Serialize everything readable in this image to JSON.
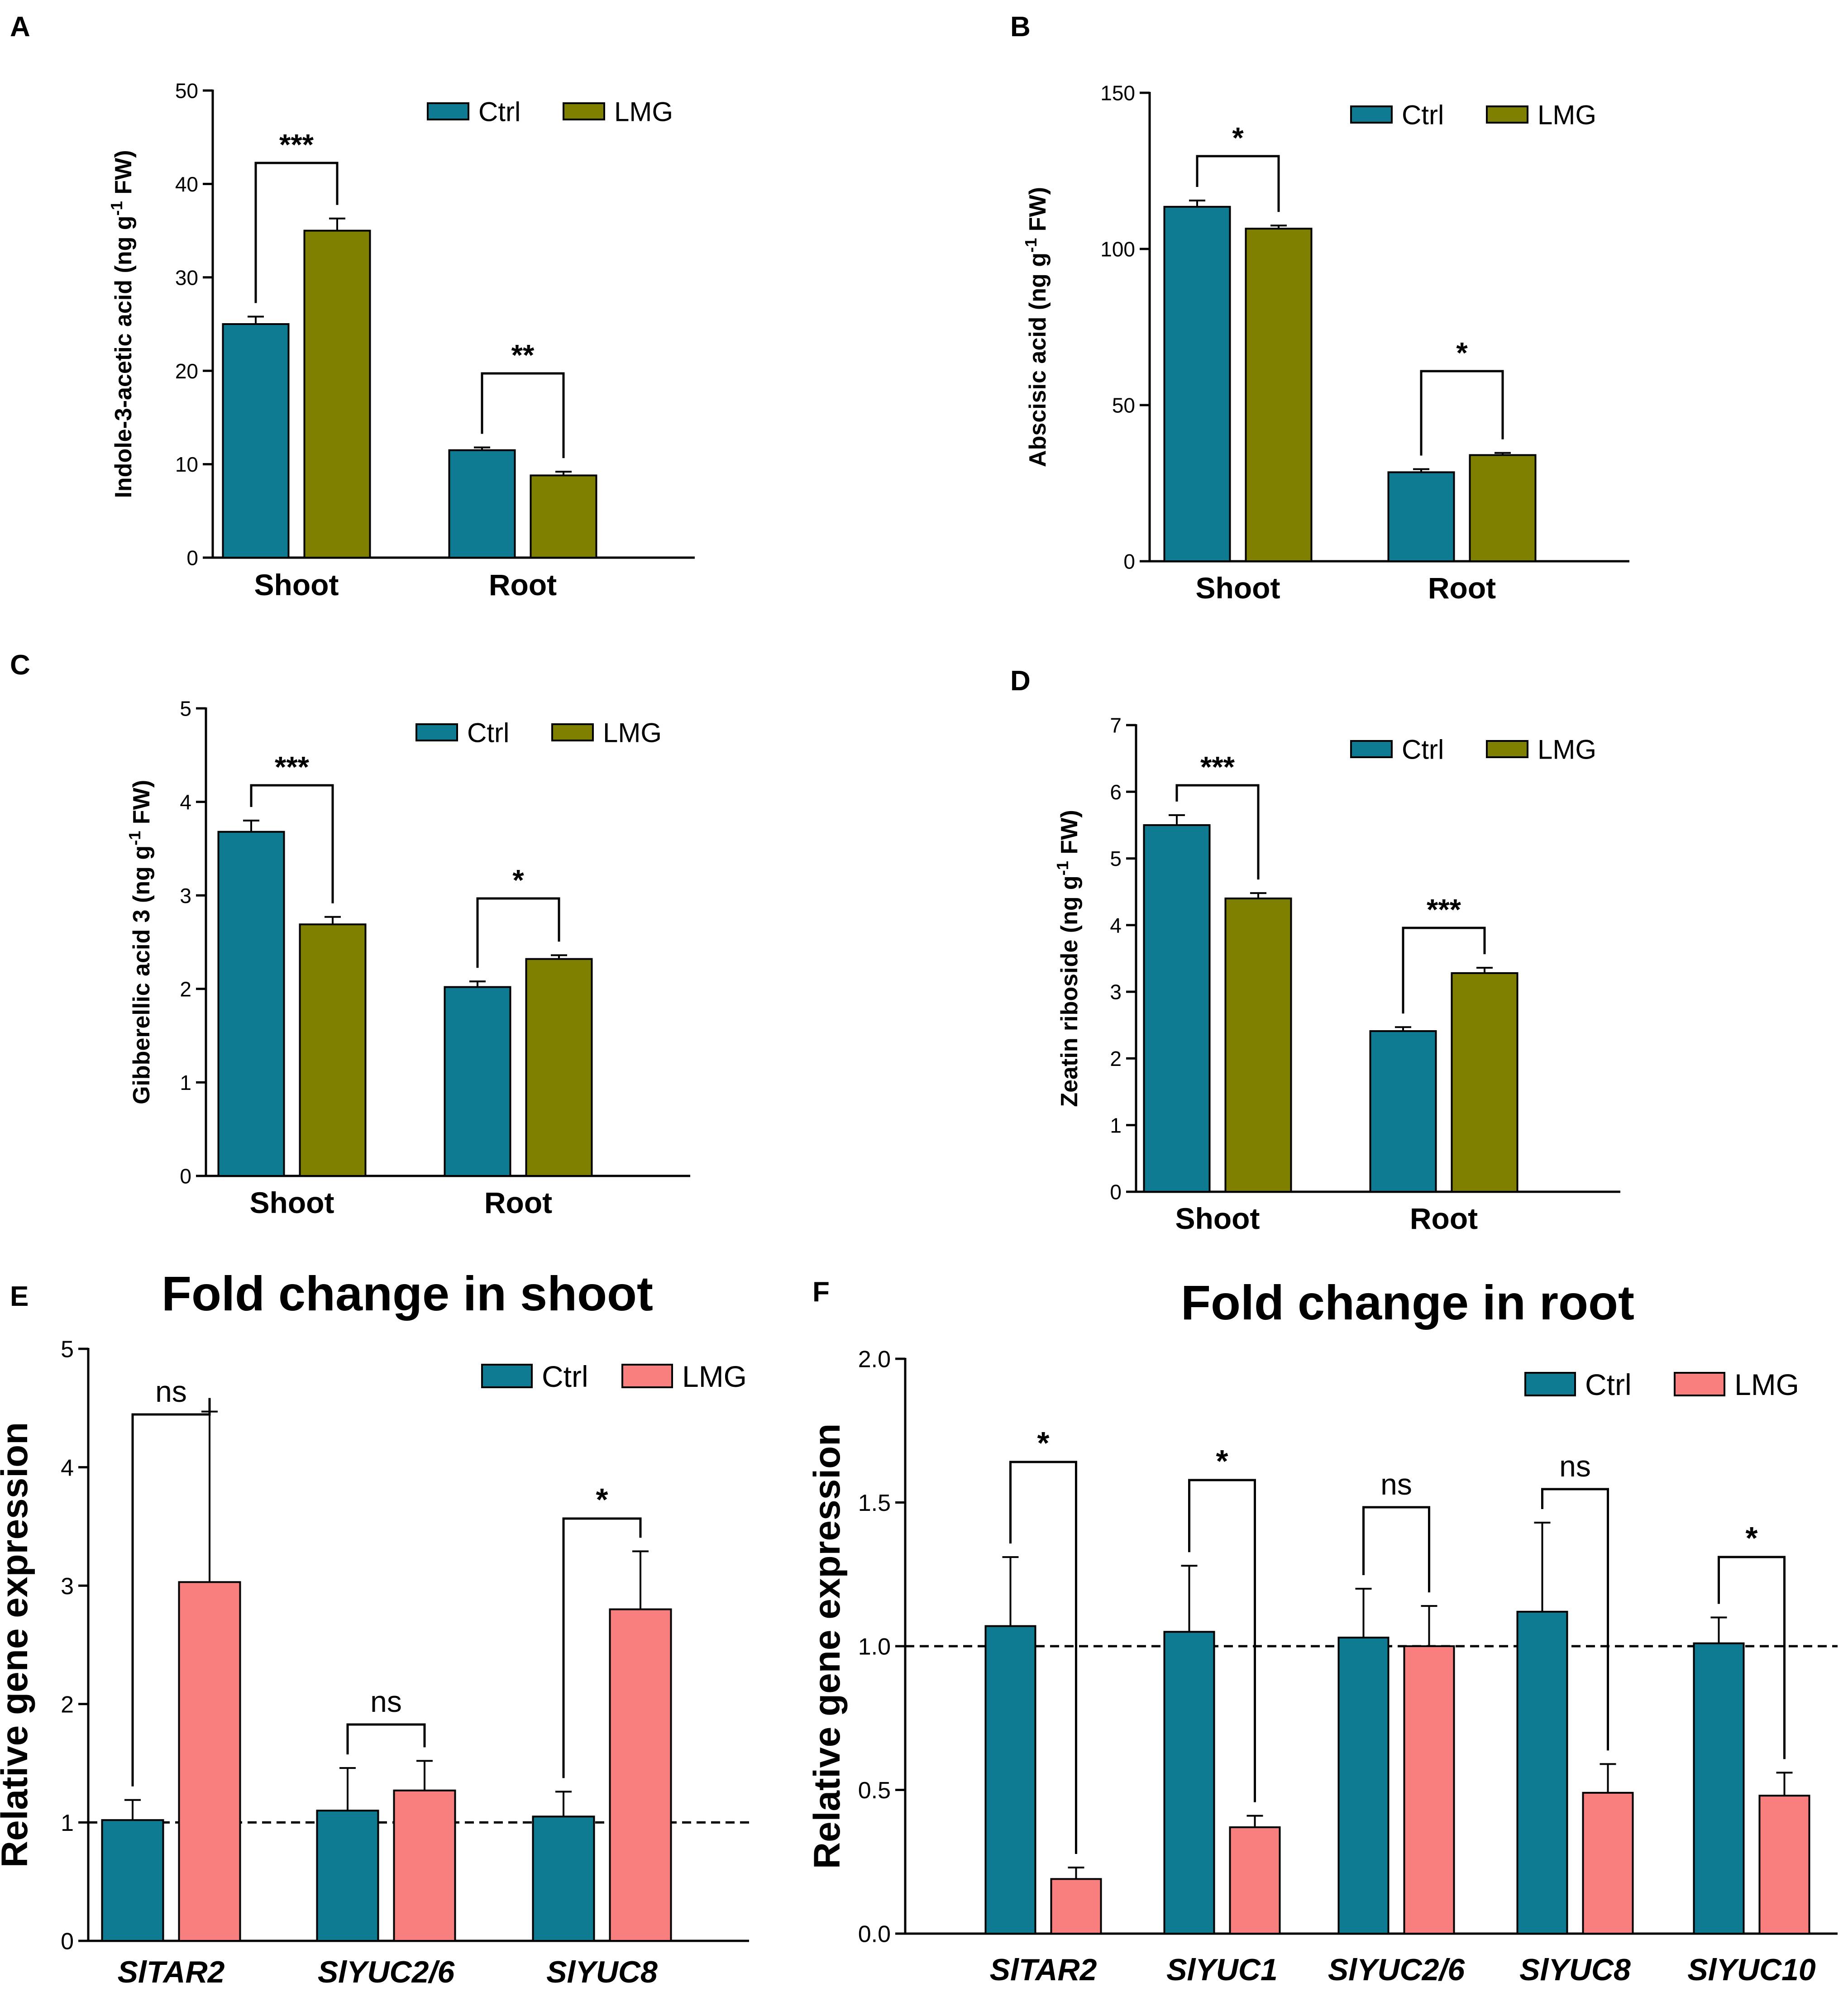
{
  "figure": {
    "colors": {
      "ctrl": "#0e7b93",
      "lmg_olive": "#808000",
      "lmg_pink": "#f97f7f",
      "axis": "#000000"
    },
    "charts": [
      {
        "panel": "A",
        "chart_data": {
          "type": "bar",
          "title": "",
          "ylabel": "Indole-3-acetic acid (ng g-1 FW)",
          "ylabel_main": "Indole-3-acetic acid (ng g",
          "ylabel_sup": "-1",
          "ylabel_end": " FW)",
          "ylim": [
            0,
            50
          ],
          "yticks": [
            "0",
            "10",
            "20",
            "30",
            "40",
            "50"
          ],
          "italic_categories": false,
          "categories": [
            "Shoot",
            "Root"
          ],
          "series": [
            {
              "name": "Ctrl",
              "color": "#0e7b93",
              "values": [
                25.0,
                11.5
              ],
              "errors": [
                0.8,
                0.3
              ]
            },
            {
              "name": "LMG",
              "color": "#808000",
              "values": [
                35.0,
                8.8
              ],
              "errors": [
                1.3,
                0.4
              ]
            }
          ],
          "significance": [
            "***",
            "**"
          ]
        }
      },
      {
        "panel": "B",
        "chart_data": {
          "type": "bar",
          "title": "",
          "ylabel": "Abscisic acid (ng g-1 FW)",
          "ylabel_main": "Abscisic acid (ng g",
          "ylabel_sup": "-1",
          "ylabel_end": " FW)",
          "ylim": [
            0,
            150
          ],
          "yticks": [
            "0",
            "50",
            "100",
            "150"
          ],
          "italic_categories": false,
          "categories": [
            "Shoot",
            "Root"
          ],
          "series": [
            {
              "name": "Ctrl",
              "color": "#0e7b93",
              "values": [
                113.5,
                28.5
              ],
              "errors": [
                2.0,
                1.0
              ]
            },
            {
              "name": "LMG",
              "color": "#808000",
              "values": [
                106.5,
                34.0
              ],
              "errors": [
                1.0,
                0.7
              ]
            }
          ],
          "significance": [
            "*",
            "*"
          ]
        }
      },
      {
        "panel": "C",
        "chart_data": {
          "type": "bar",
          "title": "",
          "ylabel": "Gibberellic acid 3 (ng g-1 FW)",
          "ylabel_main": "Gibberellic acid 3 (ng g",
          "ylabel_sup": "-1",
          "ylabel_end": " FW)",
          "ylim": [
            0,
            5
          ],
          "yticks": [
            "0",
            "1",
            "2",
            "3",
            "4",
            "5"
          ],
          "italic_categories": false,
          "categories": [
            "Shoot",
            "Root"
          ],
          "series": [
            {
              "name": "Ctrl",
              "color": "#0e7b93",
              "values": [
                3.68,
                2.02
              ],
              "errors": [
                0.12,
                0.06
              ]
            },
            {
              "name": "LMG",
              "color": "#808000",
              "values": [
                2.69,
                2.32
              ],
              "errors": [
                0.08,
                0.04
              ]
            }
          ],
          "significance": [
            "***",
            "*"
          ]
        }
      },
      {
        "panel": "D",
        "chart_data": {
          "type": "bar",
          "title": "",
          "ylabel": "Zeatin riboside (ng g-1 FW)",
          "ylabel_main": "Zeatin riboside (ng g",
          "ylabel_sup": "-1",
          "ylabel_end": " FW)",
          "ylim": [
            0,
            7
          ],
          "yticks": [
            "0",
            "1",
            "2",
            "3",
            "4",
            "5",
            "6",
            "7"
          ],
          "italic_categories": false,
          "categories": [
            "Shoot",
            "Root"
          ],
          "series": [
            {
              "name": "Ctrl",
              "color": "#0e7b93",
              "values": [
                5.5,
                2.41
              ],
              "errors": [
                0.15,
                0.06
              ]
            },
            {
              "name": "LMG",
              "color": "#808000",
              "values": [
                4.4,
                3.28
              ],
              "errors": [
                0.08,
                0.08
              ]
            }
          ],
          "significance": [
            "***",
            "***"
          ]
        }
      },
      {
        "panel": "E",
        "chart_data": {
          "type": "bar",
          "title": "Fold change in shoot",
          "ylabel": "Relative gene expression",
          "ylabel_main": "Relative gene expression",
          "ylabel_sup": "",
          "ylabel_end": "",
          "ylim": [
            0,
            5
          ],
          "yticks": [
            "0",
            "1",
            "2",
            "3",
            "4",
            "5"
          ],
          "italic_categories": true,
          "reference_line": 1.0,
          "categories": [
            "SlTAR2",
            "SlYUC2/6",
            "SlYUC8"
          ],
          "series": [
            {
              "name": "Ctrl",
              "color": "#0e7b93",
              "values": [
                1.02,
                1.1,
                1.05
              ],
              "errors": [
                0.17,
                0.36,
                0.21
              ]
            },
            {
              "name": "LMG",
              "color": "#f97f7f",
              "values": [
                3.03,
                1.27,
                2.8
              ],
              "errors": [
                1.44,
                0.25,
                0.49
              ]
            }
          ],
          "significance": [
            "ns",
            "ns",
            "*"
          ]
        }
      },
      {
        "panel": "F",
        "chart_data": {
          "type": "bar",
          "title": "Fold change in root",
          "ylabel": "Relative gene expression",
          "ylabel_main": "Relative gene expression",
          "ylabel_sup": "",
          "ylabel_end": "",
          "ylim": [
            0,
            2.0
          ],
          "yticks": [
            "0.0",
            "0.5",
            "1.0",
            "1.5",
            "2.0"
          ],
          "italic_categories": true,
          "reference_line": 1.0,
          "categories": [
            "SlTAR2",
            "SlYUC1",
            "SlYUC2/6",
            "SlYUC8",
            "SlYUC10"
          ],
          "series": [
            {
              "name": "Ctrl",
              "color": "#0e7b93",
              "values": [
                1.07,
                1.05,
                1.03,
                1.12,
                1.01
              ],
              "errors": [
                0.24,
                0.23,
                0.17,
                0.31,
                0.09
              ]
            },
            {
              "name": "LMG",
              "color": "#f97f7f",
              "values": [
                0.19,
                0.37,
                1.0,
                0.49,
                0.48
              ],
              "errors": [
                0.04,
                0.04,
                0.14,
                0.1,
                0.08
              ]
            }
          ],
          "significance": [
            "*",
            "*",
            "ns",
            "ns",
            "*"
          ]
        }
      }
    ]
  }
}
